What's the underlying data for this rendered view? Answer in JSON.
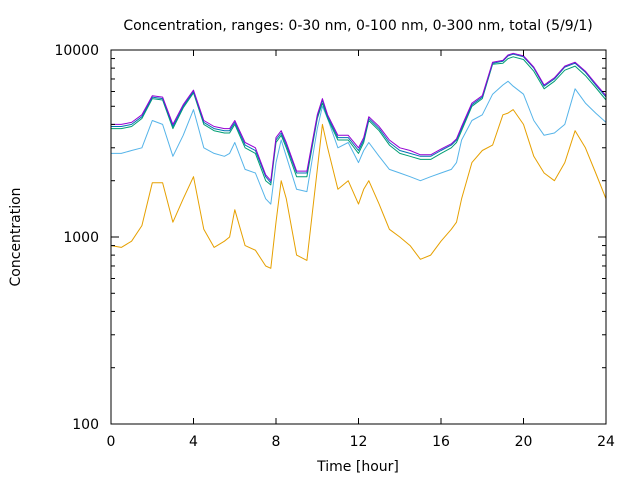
{
  "chart_data": {
    "type": "line",
    "title": "Concentration, ranges: 0-30 nm, 0-100 nm, 0-300 nm, total (5/9/1)",
    "xlabel": "Time [hour]",
    "ylabel": "Concentration",
    "xlim": [
      0,
      24
    ],
    "ylim": [
      100,
      10000
    ],
    "yscale": "log",
    "grid": false,
    "x_ticks": [
      "0",
      "4",
      "8",
      "12",
      "16",
      "20",
      "24"
    ],
    "y_ticks": [
      "100",
      "1000",
      "10000"
    ],
    "x_tick_values": [
      0,
      4,
      8,
      12,
      16,
      20,
      24
    ],
    "y_tick_values": [
      100,
      1000,
      10000
    ],
    "x": [
      0,
      0.5,
      1,
      1.5,
      2,
      2.5,
      3,
      3.5,
      4,
      4.5,
      5,
      5.5,
      5.75,
      6,
      6.5,
      7,
      7.5,
      7.75,
      8,
      8.25,
      8.5,
      9,
      9.5,
      10,
      10.25,
      10.5,
      11,
      11.5,
      12,
      12.25,
      12.5,
      13,
      13.5,
      14,
      14.5,
      15,
      15.5,
      16,
      16.5,
      16.75,
      17,
      17.5,
      18,
      18.5,
      19,
      19.25,
      19.5,
      20,
      20.5,
      21,
      21.5,
      22,
      22.5,
      23,
      23.5,
      24
    ],
    "series": [
      {
        "color": "#e6a000",
        "values": [
          900,
          880,
          950,
          1150,
          1950,
          1950,
          1200,
          1600,
          2100,
          1100,
          880,
          950,
          1000,
          1400,
          900,
          850,
          700,
          680,
          1200,
          2000,
          1600,
          800,
          750,
          2300,
          4000,
          3000,
          1800,
          2000,
          1500,
          1800,
          2000,
          1500,
          1100,
          1000,
          900,
          760,
          800,
          950,
          1100,
          1200,
          1600,
          2500,
          2900,
          3100,
          4500,
          4600,
          4800,
          4000,
          2700,
          2200,
          2000,
          2500,
          3700,
          3000,
          2200,
          1600
        ]
      },
      {
        "color": "#56b4e9",
        "values": [
          2800,
          2800,
          2900,
          3000,
          4200,
          4000,
          2700,
          3500,
          4800,
          3000,
          2800,
          2700,
          2800,
          3200,
          2300,
          2200,
          1600,
          1500,
          2500,
          3300,
          2700,
          1800,
          1750,
          3800,
          5000,
          4300,
          3000,
          3200,
          2500,
          2900,
          3200,
          2700,
          2300,
          2200,
          2100,
          2000,
          2100,
          2200,
          2300,
          2500,
          3300,
          4200,
          4500,
          5800,
          6500,
          6800,
          6400,
          5800,
          4200,
          3500,
          3600,
          4000,
          6200,
          5200,
          4600,
          4100
        ]
      },
      {
        "color": "#009e73",
        "values": [
          3800,
          3800,
          3900,
          4300,
          5500,
          5400,
          3800,
          4900,
          5900,
          4000,
          3700,
          3600,
          3600,
          4000,
          3000,
          2800,
          2000,
          1900,
          3200,
          3500,
          3000,
          2100,
          2100,
          4300,
          5200,
          4300,
          3300,
          3300,
          2800,
          3200,
          4200,
          3700,
          3100,
          2800,
          2700,
          2600,
          2600,
          2800,
          3000,
          3200,
          3700,
          5000,
          5500,
          8400,
          8500,
          9000,
          9200,
          8900,
          7700,
          6200,
          6800,
          7800,
          8200,
          7300,
          6300,
          5400
        ]
      },
      {
        "color": "#0072b2",
        "values": [
          3900,
          3900,
          4000,
          4400,
          5600,
          5500,
          3900,
          5000,
          6000,
          4100,
          3800,
          3700,
          3700,
          4100,
          3100,
          2900,
          2100,
          1950,
          3300,
          3600,
          3100,
          2200,
          2200,
          4400,
          5400,
          4400,
          3400,
          3400,
          2900,
          3300,
          4300,
          3800,
          3200,
          2900,
          2800,
          2700,
          2700,
          2900,
          3100,
          3300,
          3800,
          5100,
          5600,
          8500,
          8700,
          9300,
          9500,
          9200,
          8000,
          6400,
          7000,
          8100,
          8500,
          7600,
          6500,
          5600
        ]
      },
      {
        "color": "#9400d3",
        "values": [
          4000,
          4000,
          4100,
          4500,
          5700,
          5600,
          4000,
          5100,
          6100,
          4200,
          3900,
          3800,
          3800,
          4200,
          3200,
          3000,
          2150,
          2000,
          3400,
          3700,
          3200,
          2250,
          2250,
          4500,
          5500,
          4500,
          3500,
          3500,
          3000,
          3400,
          4400,
          3900,
          3300,
          3000,
          2900,
          2750,
          2750,
          2950,
          3150,
          3350,
          3900,
          5200,
          5700,
          8600,
          8800,
          9400,
          9600,
          9300,
          8100,
          6500,
          7100,
          8200,
          8600,
          7700,
          6600,
          5700
        ]
      }
    ]
  }
}
